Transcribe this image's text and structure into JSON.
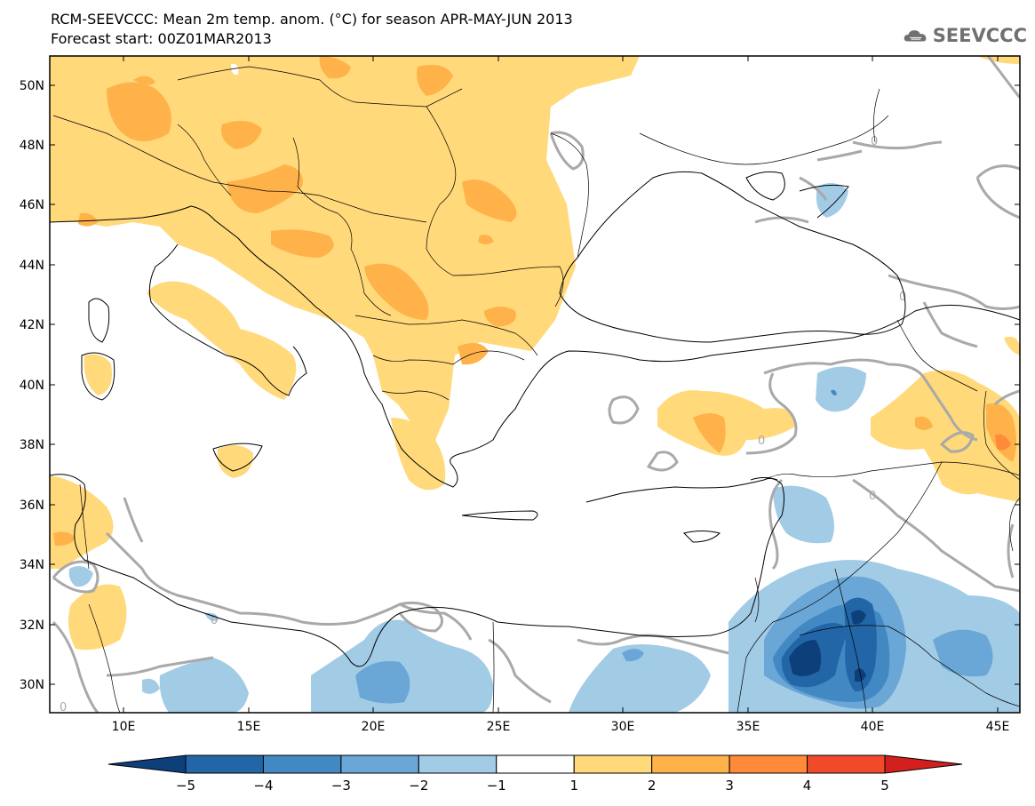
{
  "header": {
    "title_line1": "RCM-SEEVCCC: Mean 2m temp. anom. (°C) for season APR-MAY-JUN 2013",
    "title_line2": "Forecast start: 00Z01MAR2013",
    "logo_text": "SEEVCCC"
  },
  "map": {
    "lat_labels": [
      "50N",
      "48N",
      "46N",
      "44N",
      "42N",
      "40N",
      "38N",
      "36N",
      "34N",
      "32N",
      "30N"
    ],
    "lon_labels": [
      "10E",
      "15E",
      "20E",
      "25E",
      "30E",
      "35E",
      "40E",
      "45E"
    ],
    "contour_label": "0"
  },
  "colorbar": {
    "labels": [
      "−5",
      "−4",
      "−3",
      "−2",
      "−1",
      "1",
      "2",
      "3",
      "4",
      "5"
    ],
    "colors": [
      "#0d3f7a",
      "#2266a8",
      "#4289c4",
      "#6aa6d6",
      "#a2cbe6",
      "#ffffff",
      "#ffd97a",
      "#ffb24a",
      "#ff8a3a",
      "#f04a2a",
      "#d41f1f"
    ]
  }
}
